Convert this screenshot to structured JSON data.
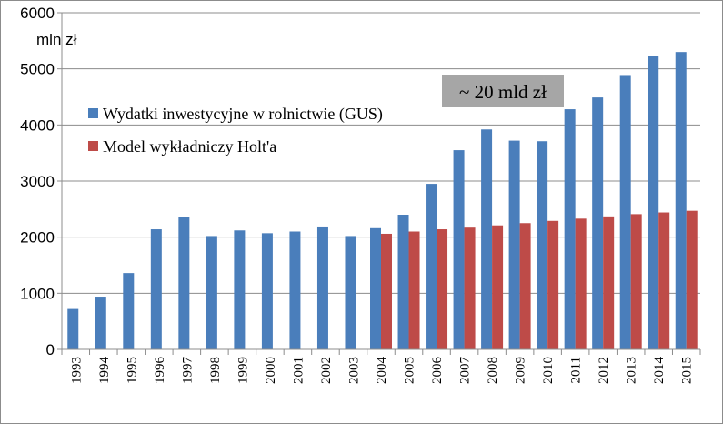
{
  "chart_data": {
    "type": "bar",
    "unit_label": "mln zł",
    "categories": [
      "1993",
      "1994",
      "1995",
      "1996",
      "1997",
      "1998",
      "1999",
      "2000",
      "2001",
      "2002",
      "2003",
      "2004",
      "2005",
      "2006",
      "2007",
      "2008",
      "2009",
      "2010",
      "2011",
      "2012",
      "2013",
      "2014",
      "2015"
    ],
    "series": [
      {
        "name": "Wydatki inwestycyjne w rolnictwie (GUS)",
        "color": "#4a7ebb",
        "values": [
          720,
          940,
          1360,
          2140,
          2360,
          2020,
          2120,
          2070,
          2100,
          2190,
          2020,
          2160,
          2400,
          2950,
          3550,
          3920,
          3720,
          3710,
          4280,
          4490,
          4890,
          5230,
          5300
        ]
      },
      {
        "name": "Model wykładniczy Holt'a",
        "color": "#be4b48",
        "values": [
          null,
          null,
          null,
          null,
          null,
          null,
          null,
          null,
          null,
          null,
          null,
          2060,
          2100,
          2140,
          2170,
          2210,
          2250,
          2290,
          2330,
          2370,
          2410,
          2440,
          2470
        ]
      }
    ],
    "yticks": [
      0,
      1000,
      2000,
      3000,
      4000,
      5000,
      6000
    ],
    "ylim": [
      0,
      6000
    ],
    "grid": true,
    "legend": "upper-left",
    "annotation": "~ 20 mld zł",
    "annotation_range": [
      "2007",
      "2008"
    ]
  }
}
